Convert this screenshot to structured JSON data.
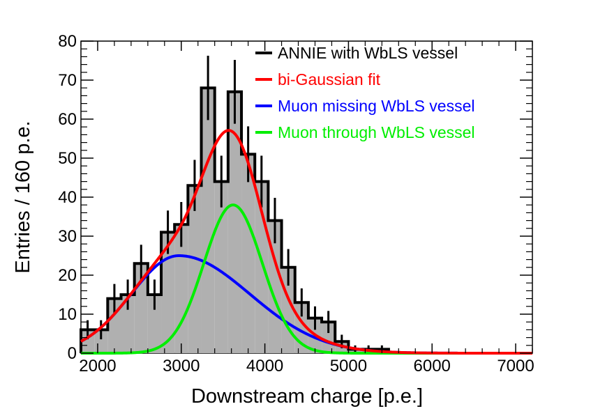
{
  "chart_data": {
    "type": "histogram",
    "title": "",
    "xlabel": "Downstream charge [p.e.]",
    "ylabel": "Entries / 160 p.e.",
    "xlim": [
      1800,
      7200
    ],
    "ylim": [
      0,
      80
    ],
    "x_ticks": [
      2000,
      3000,
      4000,
      5000,
      6000,
      7000
    ],
    "y_ticks": [
      0,
      10,
      20,
      30,
      40,
      50,
      60,
      70,
      80
    ],
    "grid": false,
    "legend_position": "top-right",
    "bin_width": 160,
    "histogram": {
      "name": "ANNIE with WbLS vessel",
      "color": "#000000",
      "fill": "#b0b0b0",
      "bin_low_edges": [
        1800,
        1960,
        2120,
        2280,
        2440,
        2600,
        2760,
        2920,
        3080,
        3240,
        3400,
        3560,
        3720,
        3880,
        4040,
        4200,
        4360,
        4520,
        4680,
        4840,
        5000,
        5160,
        5320,
        5480,
        5640,
        5800,
        5960,
        6120,
        6280,
        6440,
        6600,
        6760,
        6920,
        7080
      ],
      "counts": [
        6,
        6,
        14,
        15,
        23,
        15,
        31,
        33,
        43,
        68,
        44,
        67,
        51,
        44,
        34,
        22,
        13,
        9,
        8,
        3,
        1,
        1,
        1,
        0,
        0,
        0,
        0,
        0,
        0,
        0,
        0,
        0,
        0,
        0
      ]
    },
    "curves": [
      {
        "name": "bi-Gaussian fit",
        "color": "#ff0000",
        "components": [
          {
            "amp": 25,
            "mean": 2970,
            "sigma_left": 570,
            "sigma_right": 850
          },
          {
            "amp": 38,
            "mean": 3620,
            "sigma": 350
          }
        ]
      },
      {
        "name": "Muon missing WbLS vessel",
        "color": "#0000ff",
        "components": [
          {
            "amp": 25,
            "mean": 2970,
            "sigma_left": 570,
            "sigma_right": 850
          }
        ]
      },
      {
        "name": "Muon through WbLS vessel",
        "color": "#00ee00",
        "components": [
          {
            "amp": 38,
            "mean": 3620,
            "sigma": 350
          }
        ]
      }
    ]
  }
}
